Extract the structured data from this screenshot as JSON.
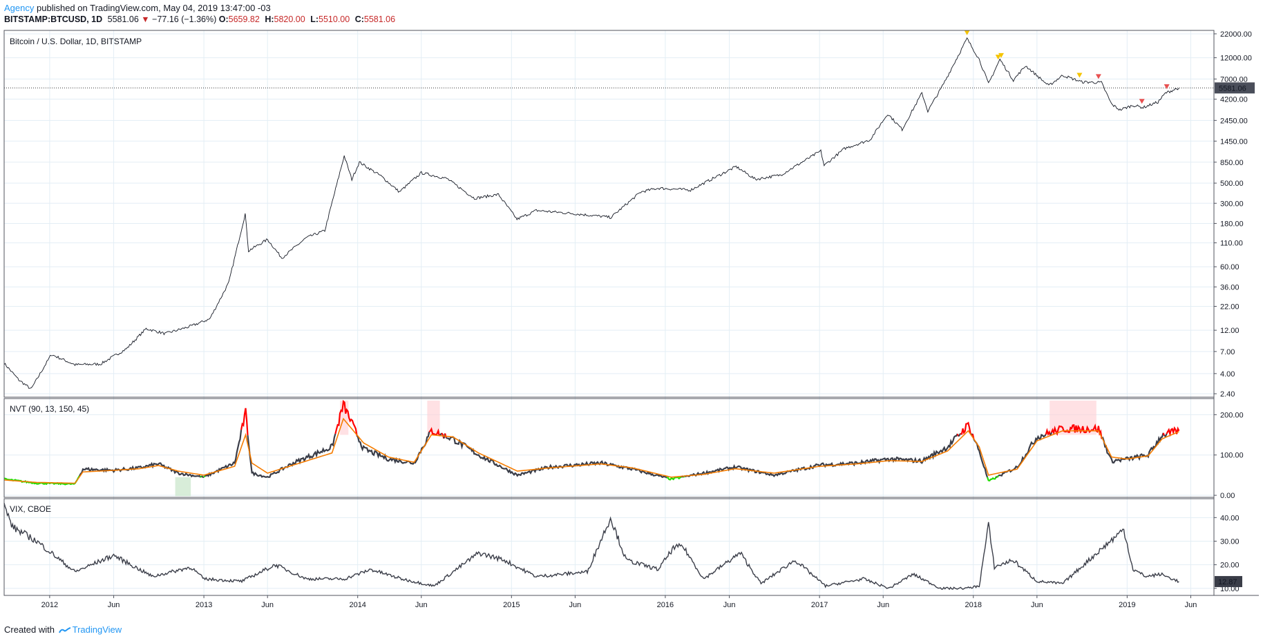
{
  "header": {
    "agency": "Agency",
    "published": "published on TradingView.com, May 04, 2019 13:47:00 -03",
    "symbol": "BITSTAMP:BTCUSD, 1D",
    "last": "5581.06",
    "change": "−77.16 (−1.36%)",
    "o_label": "O:",
    "o_value": "5659.82",
    "h_label": "H:",
    "h_value": "5820.00",
    "l_label": "L:",
    "l_value": "5510.00",
    "c_label": "C:",
    "c_value": "5581.06"
  },
  "footer": {
    "created_with": "Created with",
    "brand": "TradingView"
  },
  "colors": {
    "price": "#131722",
    "nvt_ma": "#f57c00",
    "nvt_high": "#ff0000",
    "nvt_low": "#22dd00",
    "vix": "#3a3d48",
    "grid": "#e3eef5",
    "marker_yellow": "#f5c400",
    "marker_red": "#e85050"
  },
  "chart_data": [
    {
      "type": "line",
      "title": "Bitcoin / U.S. Dollar, 1D, BITSTAMP",
      "scale": "log",
      "ylim": [
        2.2,
        24000
      ],
      "y_ticks": [
        "22000.00",
        "12000.00",
        "7000.00",
        "4200.00",
        "2450.00",
        "1450.00",
        "850.00",
        "500.00",
        "300.00",
        "180.00",
        "110.00",
        "60.00",
        "36.00",
        "22.00",
        "12.00",
        "7.00",
        "4.00",
        "2.40"
      ],
      "last_label": "5581.06",
      "x_ticks": [
        "2012",
        "Jun",
        "2013",
        "Jun",
        "2014",
        "Jun",
        "2015",
        "Jun",
        "2016",
        "Jun",
        "2017",
        "Jun",
        "2018",
        "Jun",
        "2019",
        "Jun"
      ],
      "x": [
        "2011-09-15",
        "2011-10-20",
        "2011-11-18",
        "2012-01-05",
        "2012-03-01",
        "2012-05-01",
        "2012-07-01",
        "2012-08-17",
        "2012-10-01",
        "2012-12-01",
        "2013-01-15",
        "2013-03-01",
        "2013-04-09",
        "2013-04-17",
        "2013-06-01",
        "2013-07-05",
        "2013-09-01",
        "2013-10-15",
        "2013-11-30",
        "2013-12-18",
        "2014-01-05",
        "2014-02-25",
        "2014-04-10",
        "2014-06-01",
        "2014-08-01",
        "2014-10-05",
        "2014-12-01",
        "2015-01-14",
        "2015-03-01",
        "2015-06-01",
        "2015-08-25",
        "2015-11-04",
        "2015-12-15",
        "2016-03-01",
        "2016-06-17",
        "2016-08-02",
        "2016-10-01",
        "2017-01-04",
        "2017-01-12",
        "2017-03-01",
        "2017-05-01",
        "2017-06-12",
        "2017-07-16",
        "2017-09-01",
        "2017-09-15",
        "2017-10-20",
        "2017-12-17",
        "2018-01-15",
        "2018-02-06",
        "2018-03-05",
        "2018-04-06",
        "2018-05-05",
        "2018-06-29",
        "2018-08-01",
        "2018-09-15",
        "2018-11-01",
        "2018-11-25",
        "2018-12-15",
        "2019-01-15",
        "2019-02-08",
        "2019-03-15",
        "2019-04-02",
        "2019-04-25",
        "2019-05-04"
      ],
      "values": [
        5.2,
        3.4,
        2.7,
        6.5,
        5.0,
        5.1,
        7.5,
        12.5,
        11.0,
        13.3,
        16.0,
        40.0,
        230.0,
        90.0,
        120.0,
        75.0,
        125.0,
        150.0,
        1000.0,
        550.0,
        850.0,
        600.0,
        400.0,
        650.0,
        560.0,
        340.0,
        375.0,
        200.0,
        250.0,
        230.0,
        210.0,
        400.0,
        440.0,
        420.0,
        760.0,
        550.0,
        615.0,
        1130.0,
        780.0,
        1200.0,
        1500.0,
        2900.0,
        1950.0,
        4900.0,
        3100.0,
        5900.0,
        19500.0,
        11500.0,
        6200.0,
        11500.0,
        6800.0,
        9800.0,
        5900.0,
        7700.0,
        6500.0,
        6400.0,
        3700.0,
        3200.0,
        3600.0,
        3400.0,
        3900.0,
        4900.0,
        5400.0,
        5581.06
      ],
      "markers": [
        {
          "x": "2017-12-17",
          "kind": "yellow"
        },
        {
          "x": "2018-03-01",
          "kind": "yellow"
        },
        {
          "x": "2018-03-08",
          "kind": "yellow"
        },
        {
          "x": "2018-09-10",
          "kind": "yellow"
        },
        {
          "x": "2018-10-25",
          "kind": "red"
        },
        {
          "x": "2019-02-05",
          "kind": "red"
        },
        {
          "x": "2019-04-05",
          "kind": "red"
        }
      ]
    },
    {
      "type": "line",
      "title": "NVT (90, 13, 150, 45)",
      "ylim": [
        -5,
        240
      ],
      "y_ticks": [
        "200.00",
        "100.00",
        "0.00"
      ],
      "x": [
        "2011-09-15",
        "2011-12-01",
        "2012-03-01",
        "2012-03-20",
        "2012-06-01",
        "2012-08-01",
        "2012-09-15",
        "2012-11-01",
        "2013-01-01",
        "2013-03-15",
        "2013-04-10",
        "2013-04-25",
        "2013-06-01",
        "2013-08-01",
        "2013-11-01",
        "2013-11-28",
        "2014-01-15",
        "2014-03-15",
        "2014-05-15",
        "2014-06-25",
        "2014-08-15",
        "2014-10-15",
        "2015-01-15",
        "2015-04-01",
        "2015-08-01",
        "2015-10-15",
        "2016-01-15",
        "2016-04-01",
        "2016-06-15",
        "2016-09-15",
        "2017-01-01",
        "2017-04-01",
        "2017-06-15",
        "2017-09-01",
        "2017-11-01",
        "2017-12-20",
        "2018-01-15",
        "2018-02-06",
        "2018-04-15",
        "2018-06-01",
        "2018-08-01",
        "2018-10-25",
        "2018-11-25",
        "2019-01-01",
        "2019-02-20",
        "2019-03-25",
        "2019-05-04"
      ],
      "values": [
        40,
        30,
        28,
        65,
        62,
        68,
        78,
        55,
        45,
        80,
        205,
        55,
        45,
        80,
        120,
        225,
        115,
        90,
        80,
        160,
        140,
        100,
        50,
        70,
        80,
        65,
        40,
        55,
        70,
        50,
        75,
        80,
        90,
        85,
        120,
        175,
        110,
        35,
        70,
        145,
        165,
        165,
        85,
        90,
        100,
        150,
        160
      ],
      "ma_values": [
        38,
        32,
        30,
        58,
        62,
        66,
        74,
        60,
        50,
        72,
        150,
        80,
        55,
        75,
        105,
        190,
        130,
        95,
        82,
        150,
        145,
        105,
        60,
        68,
        78,
        68,
        45,
        52,
        66,
        55,
        72,
        78,
        86,
        84,
        110,
        160,
        120,
        50,
        65,
        135,
        160,
        160,
        95,
        90,
        98,
        140,
        158
      ],
      "high_threshold": 150,
      "low_threshold": 45
    },
    {
      "type": "line",
      "title": "VIX, CBOE",
      "ylim": [
        7,
        48
      ],
      "y_ticks": [
        "40.00",
        "30.00",
        "20.00",
        "10.00"
      ],
      "last_label": "12.87",
      "x": [
        "2011-09-15",
        "2011-10-05",
        "2011-12-01",
        "2012-03-01",
        "2012-06-01",
        "2012-09-01",
        "2012-12-01",
        "2013-01-01",
        "2013-04-01",
        "2013-06-20",
        "2013-09-01",
        "2013-12-01",
        "2014-02-01",
        "2014-04-15",
        "2014-07-01",
        "2014-10-15",
        "2014-12-15",
        "2015-01-15",
        "2015-03-01",
        "2015-06-30",
        "2015-08-24",
        "2015-09-30",
        "2015-12-15",
        "2016-01-20",
        "2016-02-11",
        "2016-04-01",
        "2016-06-27",
        "2016-08-15",
        "2016-11-04",
        "2017-01-15",
        "2017-04-15",
        "2017-06-15",
        "2017-08-11",
        "2017-10-15",
        "2017-12-15",
        "2018-01-15",
        "2018-02-06",
        "2018-02-20",
        "2018-04-05",
        "2018-06-01",
        "2018-08-01",
        "2018-10-15",
        "2018-12-24",
        "2019-01-15",
        "2019-02-15",
        "2019-03-22",
        "2019-05-04"
      ],
      "values": [
        45,
        36,
        30,
        17,
        24,
        15,
        19,
        14,
        13,
        20,
        14,
        14,
        18,
        14,
        11,
        25,
        22,
        19,
        15,
        17,
        40,
        22,
        18,
        27,
        28,
        14,
        25,
        12,
        22,
        11,
        14,
        10,
        16,
        10,
        10,
        11,
        37,
        19,
        22,
        13,
        12,
        24,
        35,
        18,
        15,
        16,
        12.87
      ]
    }
  ]
}
